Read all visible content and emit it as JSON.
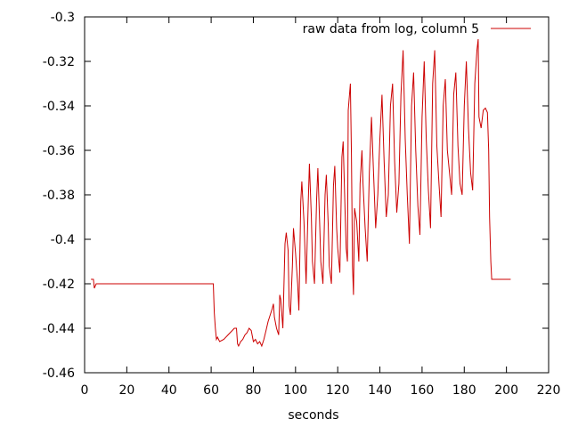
{
  "chart_data": {
    "type": "line",
    "title": "",
    "xlabel": "seconds",
    "ylabel": "",
    "xlim": [
      0,
      220
    ],
    "ylim": [
      -0.46,
      -0.3
    ],
    "x_ticks": [
      0,
      20,
      40,
      60,
      80,
      100,
      120,
      140,
      160,
      180,
      200,
      220
    ],
    "y_ticks": [
      -0.46,
      -0.44,
      -0.42,
      -0.4,
      -0.38,
      -0.36,
      -0.34,
      -0.32,
      -0.3
    ],
    "x_tick_labels": [
      "0",
      "20",
      "40",
      "60",
      "80",
      "100",
      "120",
      "140",
      "160",
      "180",
      "200",
      "220"
    ],
    "y_tick_labels": [
      "-0.46",
      "-0.44",
      "-0.42",
      "-0.4",
      "-0.38",
      "-0.36",
      "-0.34",
      "-0.32",
      "-0.3"
    ],
    "grid": false,
    "legend": {
      "position": "top-right"
    },
    "colors": {
      "series": "#cc0000",
      "axes": "#000000"
    },
    "series": [
      {
        "name": "raw data from log, column 5",
        "points": [
          [
            3,
            -0.418
          ],
          [
            4.2,
            -0.418
          ],
          [
            4.6,
            -0.422
          ],
          [
            5.5,
            -0.42
          ],
          [
            20,
            -0.42
          ],
          [
            40,
            -0.42
          ],
          [
            60,
            -0.42
          ],
          [
            61,
            -0.42
          ],
          [
            61.5,
            -0.433
          ],
          [
            62,
            -0.44
          ],
          [
            62.5,
            -0.445
          ],
          [
            63,
            -0.444
          ],
          [
            64,
            -0.446
          ],
          [
            66,
            -0.445
          ],
          [
            68,
            -0.443
          ],
          [
            70,
            -0.441
          ],
          [
            71,
            -0.44
          ],
          [
            72,
            -0.44
          ],
          [
            72.5,
            -0.447
          ],
          [
            73,
            -0.448
          ],
          [
            74,
            -0.446
          ],
          [
            75,
            -0.445
          ],
          [
            76,
            -0.443
          ],
          [
            77,
            -0.442
          ],
          [
            78,
            -0.44
          ],
          [
            79,
            -0.441
          ],
          [
            80,
            -0.446
          ],
          [
            81,
            -0.445
          ],
          [
            82,
            -0.447
          ],
          [
            83,
            -0.446
          ],
          [
            84,
            -0.448
          ],
          [
            85,
            -0.445
          ],
          [
            86,
            -0.441
          ],
          [
            87,
            -0.437
          ],
          [
            88,
            -0.434
          ],
          [
            89,
            -0.431
          ],
          [
            89.5,
            -0.429
          ],
          [
            90,
            -0.435
          ],
          [
            91,
            -0.44
          ],
          [
            92,
            -0.443
          ],
          [
            92.5,
            -0.425
          ],
          [
            93,
            -0.427
          ],
          [
            94,
            -0.44
          ],
          [
            95,
            -0.402
          ],
          [
            95.6,
            -0.397
          ],
          [
            96.5,
            -0.405
          ],
          [
            97,
            -0.43
          ],
          [
            97.6,
            -0.434
          ],
          [
            98.5,
            -0.412
          ],
          [
            99,
            -0.395
          ],
          [
            100,
            -0.406
          ],
          [
            101,
            -0.42
          ],
          [
            101.6,
            -0.432
          ],
          [
            102.5,
            -0.383
          ],
          [
            103,
            -0.374
          ],
          [
            104,
            -0.392
          ],
          [
            105,
            -0.42
          ],
          [
            106,
            -0.385
          ],
          [
            106.6,
            -0.366
          ],
          [
            107.5,
            -0.39
          ],
          [
            108,
            -0.41
          ],
          [
            109,
            -0.42
          ],
          [
            110,
            -0.382
          ],
          [
            110.6,
            -0.368
          ],
          [
            111.5,
            -0.395
          ],
          [
            112,
            -0.41
          ],
          [
            113,
            -0.42
          ],
          [
            114,
            -0.38
          ],
          [
            114.6,
            -0.371
          ],
          [
            115.5,
            -0.393
          ],
          [
            116,
            -0.412
          ],
          [
            117,
            -0.42
          ],
          [
            118,
            -0.376
          ],
          [
            118.6,
            -0.367
          ],
          [
            119.5,
            -0.395
          ],
          [
            120,
            -0.404
          ],
          [
            121,
            -0.415
          ],
          [
            122,
            -0.363
          ],
          [
            122.6,
            -0.356
          ],
          [
            123.5,
            -0.388
          ],
          [
            124,
            -0.404
          ],
          [
            124.6,
            -0.41
          ],
          [
            125,
            -0.342
          ],
          [
            126,
            -0.33
          ],
          [
            126.5,
            -0.362
          ],
          [
            127,
            -0.412
          ],
          [
            127.5,
            -0.425
          ],
          [
            128,
            -0.386
          ],
          [
            129,
            -0.392
          ],
          [
            130,
            -0.41
          ],
          [
            130.6,
            -0.375
          ],
          [
            131.5,
            -0.36
          ],
          [
            132,
            -0.375
          ],
          [
            133,
            -0.395
          ],
          [
            134,
            -0.41
          ],
          [
            135,
            -0.37
          ],
          [
            136,
            -0.345
          ],
          [
            137,
            -0.37
          ],
          [
            138,
            -0.395
          ],
          [
            139,
            -0.38
          ],
          [
            140,
            -0.355
          ],
          [
            141,
            -0.335
          ],
          [
            142,
            -0.365
          ],
          [
            143,
            -0.39
          ],
          [
            144,
            -0.38
          ],
          [
            145,
            -0.34
          ],
          [
            146,
            -0.33
          ],
          [
            147,
            -0.365
          ],
          [
            148,
            -0.388
          ],
          [
            149,
            -0.375
          ],
          [
            150,
            -0.335
          ],
          [
            151,
            -0.315
          ],
          [
            152,
            -0.355
          ],
          [
            153,
            -0.38
          ],
          [
            154,
            -0.402
          ],
          [
            155,
            -0.34
          ],
          [
            156,
            -0.325
          ],
          [
            157,
            -0.36
          ],
          [
            158,
            -0.385
          ],
          [
            159,
            -0.398
          ],
          [
            160,
            -0.345
          ],
          [
            161,
            -0.32
          ],
          [
            162,
            -0.355
          ],
          [
            163,
            -0.378
          ],
          [
            164,
            -0.395
          ],
          [
            165,
            -0.33
          ],
          [
            166,
            -0.315
          ],
          [
            167,
            -0.358
          ],
          [
            168,
            -0.375
          ],
          [
            169,
            -0.39
          ],
          [
            170,
            -0.34
          ],
          [
            171,
            -0.328
          ],
          [
            172,
            -0.36
          ],
          [
            173,
            -0.37
          ],
          [
            174,
            -0.38
          ],
          [
            175,
            -0.335
          ],
          [
            176,
            -0.325
          ],
          [
            177,
            -0.358
          ],
          [
            178,
            -0.375
          ],
          [
            179,
            -0.38
          ],
          [
            180,
            -0.34
          ],
          [
            181,
            -0.32
          ],
          [
            182,
            -0.35
          ],
          [
            183,
            -0.37
          ],
          [
            184,
            -0.378
          ],
          [
            185,
            -0.33
          ],
          [
            186,
            -0.315
          ],
          [
            186.6,
            -0.31
          ],
          [
            187,
            -0.345
          ],
          [
            188,
            -0.35
          ],
          [
            189,
            -0.342
          ],
          [
            190,
            -0.341
          ],
          [
            191,
            -0.343
          ],
          [
            191.6,
            -0.36
          ],
          [
            192,
            -0.39
          ],
          [
            192.6,
            -0.41
          ],
          [
            193,
            -0.418
          ],
          [
            195,
            -0.418
          ],
          [
            200,
            -0.418
          ],
          [
            202,
            -0.418
          ]
        ]
      }
    ]
  }
}
